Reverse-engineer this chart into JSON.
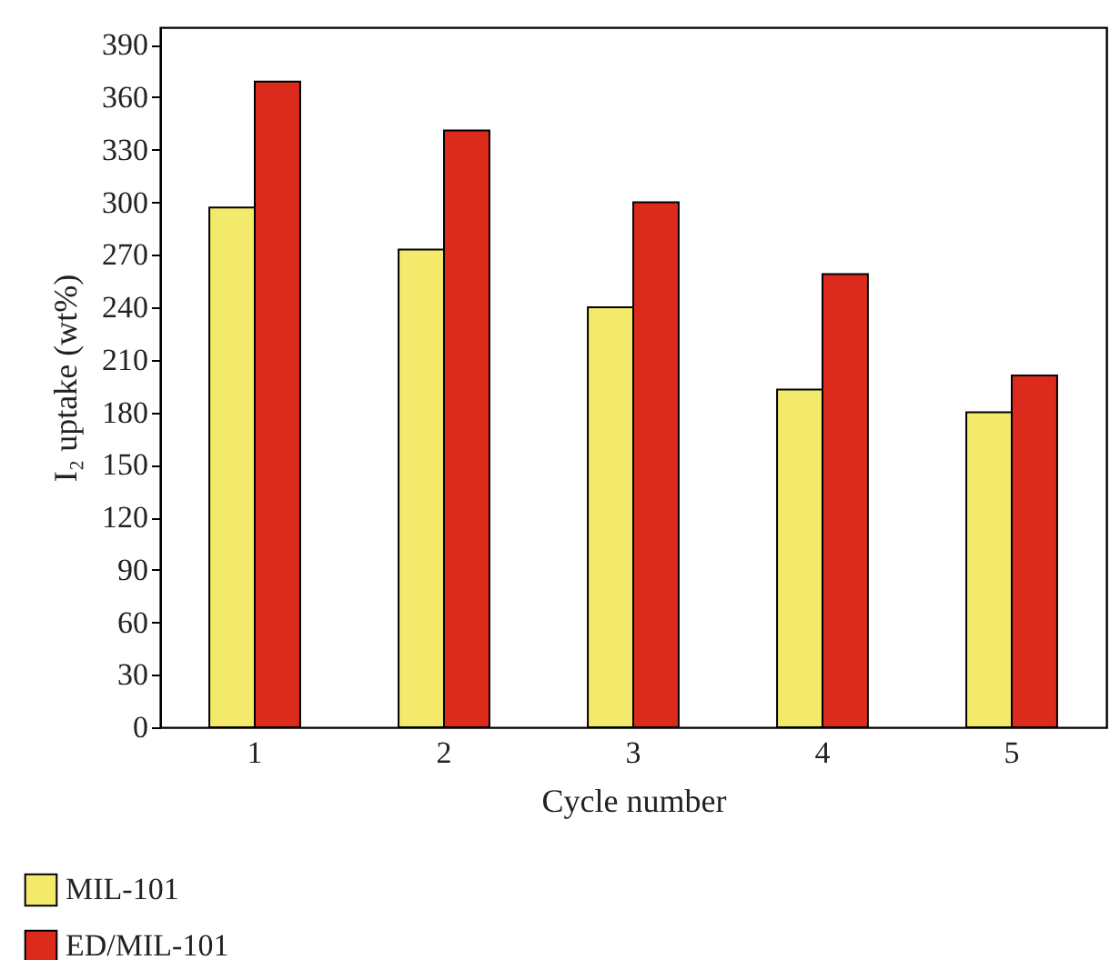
{
  "chart_data": {
    "type": "bar",
    "xlabel": "Cycle number",
    "ylabel": "I₂ uptake (wt%)",
    "categories": [
      "1",
      "2",
      "3",
      "4",
      "5"
    ],
    "series": [
      {
        "name": "MIL-101",
        "color": "#f3e96b",
        "values": [
          297,
          273,
          240,
          193,
          180
        ]
      },
      {
        "name": "ED/MIL-101",
        "color": "#dc2b1c",
        "values": [
          369,
          341,
          300,
          259,
          201
        ]
      }
    ],
    "ylim": [
      0,
      400
    ],
    "yticks": [
      0,
      30,
      60,
      90,
      120,
      150,
      180,
      210,
      240,
      270,
      300,
      330,
      360,
      390
    ],
    "grid": false,
    "legend": "bottom left"
  }
}
